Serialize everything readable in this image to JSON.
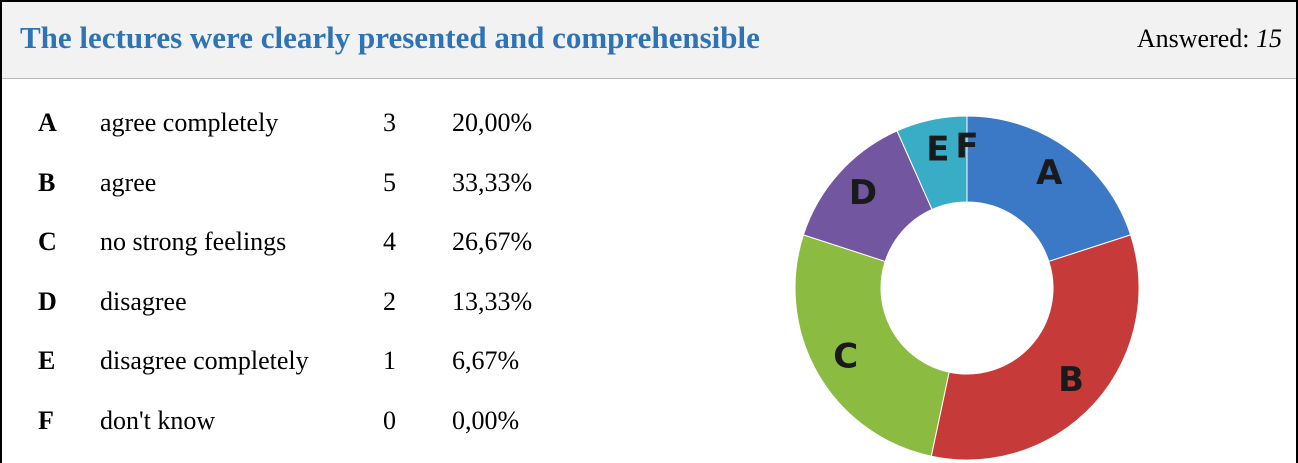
{
  "title": "The lectures were clearly presented and comprehensible",
  "answered_label": "Answered:",
  "answered_value": 15,
  "table": {
    "rows": [
      {
        "letter": "A",
        "label": "agree completely",
        "count": 3,
        "percent": "20,00%"
      },
      {
        "letter": "B",
        "label": "agree",
        "count": 5,
        "percent": "33,33%"
      },
      {
        "letter": "C",
        "label": "no strong feelings",
        "count": 4,
        "percent": "26,67%"
      },
      {
        "letter": "D",
        "label": "disagree",
        "count": 2,
        "percent": "13,33%"
      },
      {
        "letter": "E",
        "label": "disagree completely",
        "count": 1,
        "percent": "6,67%"
      },
      {
        "letter": "F",
        "label": "don't know",
        "count": 0,
        "percent": "0,00%"
      }
    ]
  },
  "chart": {
    "type": "donut",
    "colors": [
      "#3b78c6",
      "#c63b39",
      "#8cbb41",
      "#7356a0",
      "#3aadc6",
      "#e8873a"
    ]
  }
}
